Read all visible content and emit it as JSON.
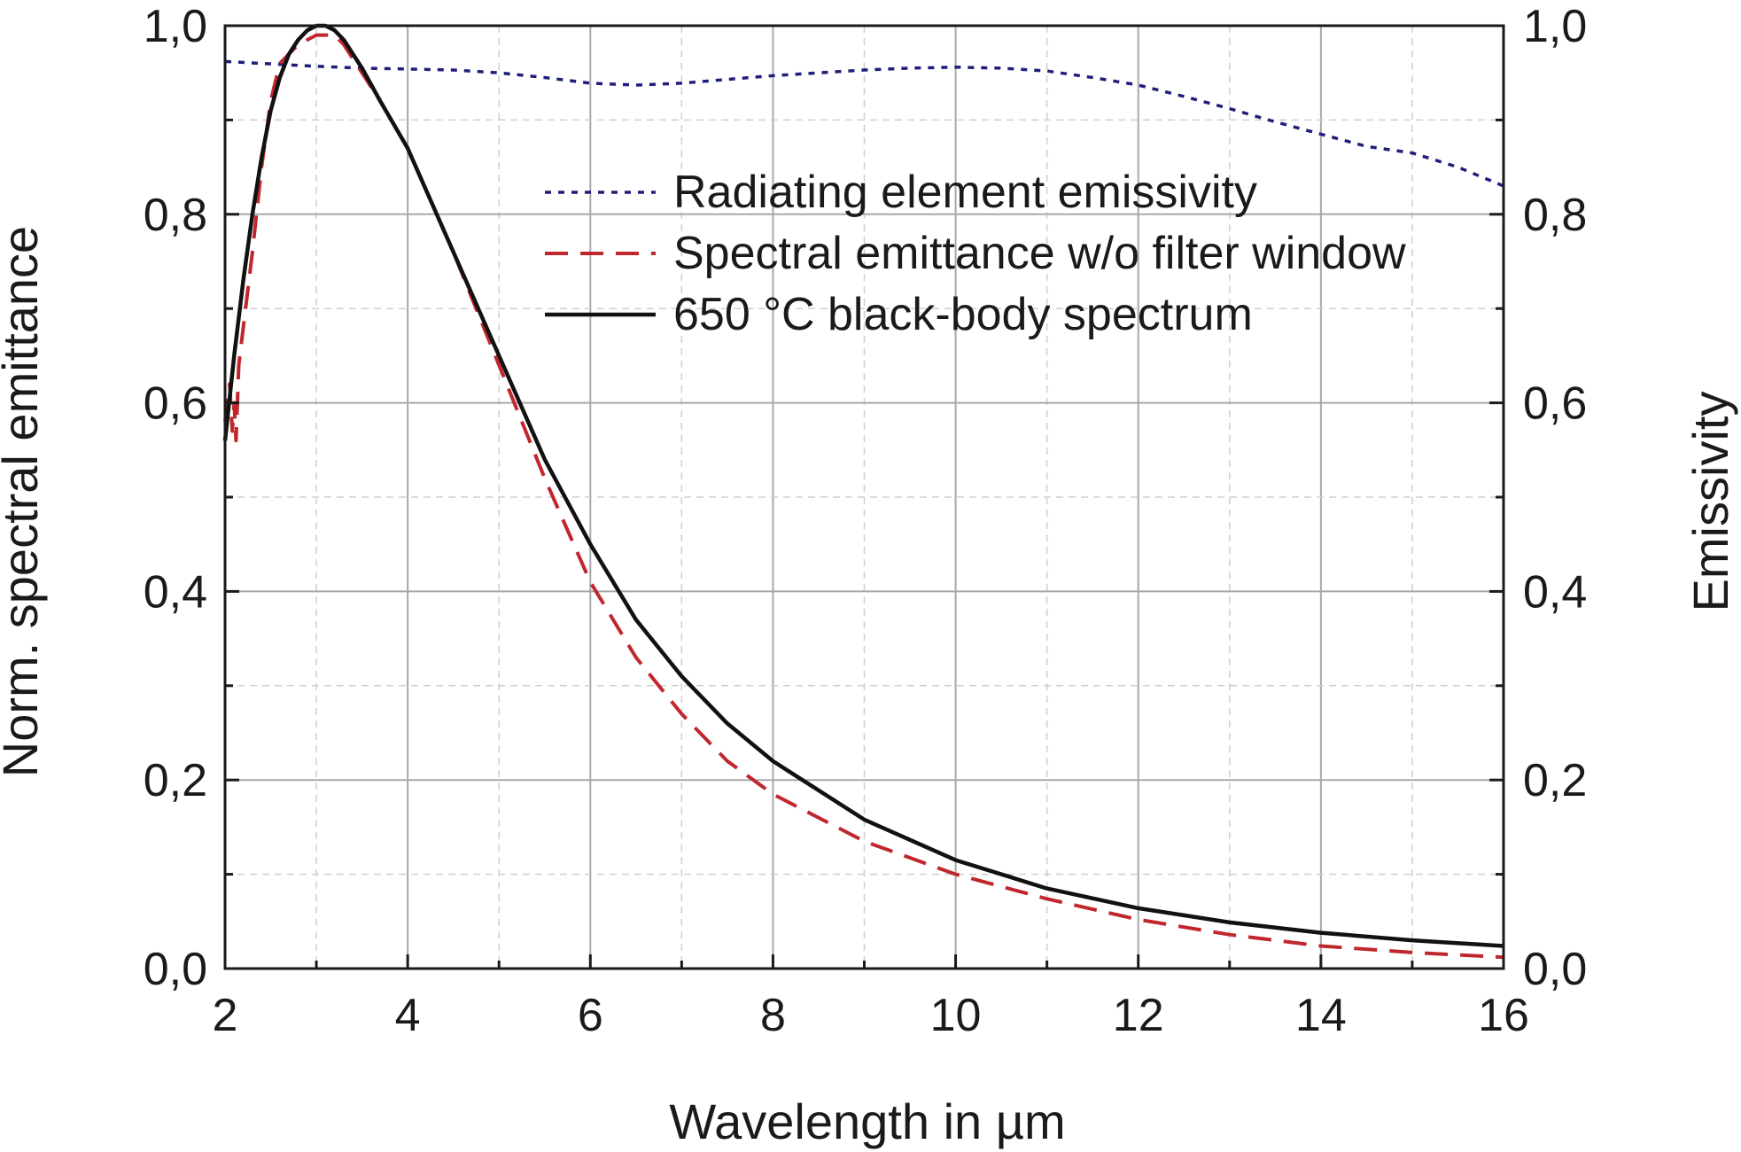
{
  "chart_data": {
    "type": "line",
    "xlabel": "Wavelength in µm",
    "ylabel_left": "Norm. spectral emittance",
    "ylabel_right": "Emissivity",
    "xlim": [
      2,
      16
    ],
    "ylim_left": [
      0,
      1
    ],
    "ylim_right": [
      0,
      1
    ],
    "x_ticks": [
      "2",
      "4",
      "6",
      "8",
      "10",
      "12",
      "14",
      "16"
    ],
    "y_ticks": [
      "0,0",
      "0,2",
      "0,4",
      "0,6",
      "0,8",
      "1,0"
    ],
    "grid": true,
    "legend_position": "upper-right",
    "series": [
      {
        "name": "Radiating element emissivity",
        "axis": "right",
        "style": "dotted",
        "color": "#1f1f7a",
        "points": [
          [
            2,
            0.962
          ],
          [
            3,
            0.957
          ],
          [
            3.5,
            0.955
          ],
          [
            4,
            0.954
          ],
          [
            4.5,
            0.953
          ],
          [
            5,
            0.95
          ],
          [
            5.5,
            0.945
          ],
          [
            6,
            0.939
          ],
          [
            6.5,
            0.937
          ],
          [
            7,
            0.939
          ],
          [
            7.5,
            0.943
          ],
          [
            8,
            0.947
          ],
          [
            8.5,
            0.95
          ],
          [
            9,
            0.953
          ],
          [
            9.5,
            0.955
          ],
          [
            10,
            0.956
          ],
          [
            10.5,
            0.955
          ],
          [
            11,
            0.952
          ],
          [
            11.5,
            0.945
          ],
          [
            12,
            0.937
          ],
          [
            12.5,
            0.925
          ],
          [
            13,
            0.912
          ],
          [
            13.5,
            0.898
          ],
          [
            14,
            0.885
          ],
          [
            14.5,
            0.872
          ],
          [
            15,
            0.865
          ],
          [
            15.5,
            0.85
          ],
          [
            16,
            0.83
          ]
        ]
      },
      {
        "name": "Spectral emittance w/o filter window",
        "axis": "left",
        "style": "dashed",
        "color": "#c0272d",
        "points": [
          [
            2.0,
            0.58
          ],
          [
            2.05,
            0.62
          ],
          [
            2.08,
            0.57
          ],
          [
            2.1,
            0.6
          ],
          [
            2.12,
            0.56
          ],
          [
            2.15,
            0.64
          ],
          [
            2.2,
            0.68
          ],
          [
            2.3,
            0.76
          ],
          [
            2.4,
            0.85
          ],
          [
            2.5,
            0.92
          ],
          [
            2.6,
            0.96
          ],
          [
            2.7,
            0.97
          ],
          [
            2.8,
            0.98
          ],
          [
            2.9,
            0.985
          ],
          [
            3.0,
            0.99
          ],
          [
            3.1,
            0.99
          ],
          [
            3.2,
            0.99
          ],
          [
            3.3,
            0.98
          ],
          [
            3.5,
            0.95
          ],
          [
            3.7,
            0.92
          ],
          [
            4.0,
            0.87
          ],
          [
            4.5,
            0.76
          ],
          [
            5.0,
            0.64
          ],
          [
            5.5,
            0.52
          ],
          [
            6.0,
            0.41
          ],
          [
            6.5,
            0.33
          ],
          [
            7.0,
            0.27
          ],
          [
            7.5,
            0.22
          ],
          [
            8.0,
            0.185
          ],
          [
            8.5,
            0.16
          ],
          [
            9.0,
            0.135
          ],
          [
            10.0,
            0.1
          ],
          [
            11.0,
            0.074
          ],
          [
            12.0,
            0.052
          ],
          [
            13.0,
            0.036
          ],
          [
            14.0,
            0.024
          ],
          [
            15.0,
            0.017
          ],
          [
            16.0,
            0.012
          ]
        ]
      },
      {
        "name": "650 °C black-body spectrum",
        "axis": "left",
        "style": "solid",
        "color": "#111111",
        "points": [
          [
            2.0,
            0.56
          ],
          [
            2.1,
            0.65
          ],
          [
            2.2,
            0.73
          ],
          [
            2.3,
            0.8
          ],
          [
            2.4,
            0.86
          ],
          [
            2.5,
            0.91
          ],
          [
            2.6,
            0.945
          ],
          [
            2.7,
            0.97
          ],
          [
            2.8,
            0.985
          ],
          [
            2.9,
            0.995
          ],
          [
            3.0,
            1.0
          ],
          [
            3.1,
            1.0
          ],
          [
            3.2,
            0.995
          ],
          [
            3.3,
            0.985
          ],
          [
            3.5,
            0.955
          ],
          [
            3.7,
            0.92
          ],
          [
            4.0,
            0.87
          ],
          [
            4.5,
            0.76
          ],
          [
            5.0,
            0.65
          ],
          [
            5.5,
            0.54
          ],
          [
            6.0,
            0.45
          ],
          [
            6.5,
            0.37
          ],
          [
            7.0,
            0.31
          ],
          [
            7.5,
            0.26
          ],
          [
            8.0,
            0.22
          ],
          [
            9.0,
            0.158
          ],
          [
            10.0,
            0.115
          ],
          [
            11.0,
            0.085
          ],
          [
            12.0,
            0.064
          ],
          [
            13.0,
            0.049
          ],
          [
            14.0,
            0.038
          ],
          [
            15.0,
            0.03
          ],
          [
            16.0,
            0.024
          ]
        ]
      }
    ]
  }
}
